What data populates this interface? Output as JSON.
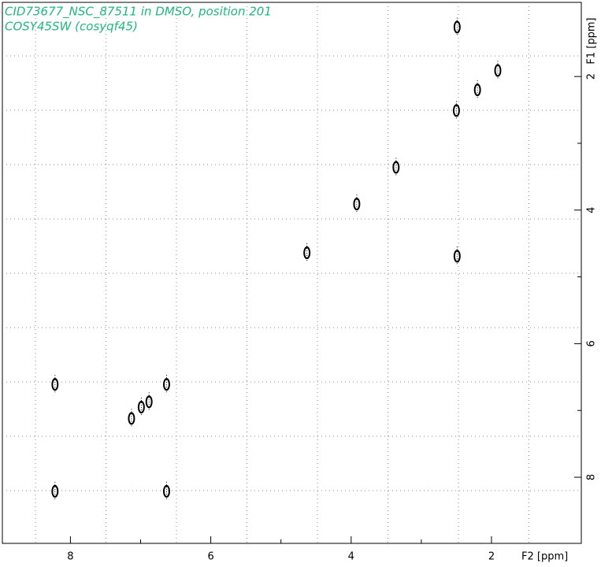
{
  "chart_data": {
    "type": "scatter",
    "title": "CID73677_NSC_87511 in DMSO, position 201",
    "subtitle": "COSY45SW (cosyqf45)",
    "x_label": "F2 [ppm]",
    "y_label": "F1 [ppm]",
    "x": [
      2.49,
      1.91,
      2.2,
      2.5,
      3.36,
      3.92,
      4.63,
      2.49,
      8.22,
      6.63,
      7.13,
      6.99,
      6.88,
      8.22,
      6.63
    ],
    "y": [
      1.26,
      1.91,
      2.2,
      2.51,
      3.36,
      3.91,
      4.64,
      4.69,
      6.61,
      6.61,
      7.12,
      6.95,
      6.87,
      8.21,
      8.21
    ],
    "color": "#000000",
    "title_color": "#1fb87a",
    "xlim": [
      8.97,
      0.72
    ],
    "ylim": [
      0.89,
      8.99
    ],
    "xticks": [
      8,
      6,
      4,
      2
    ],
    "yticks": [
      2,
      4,
      6,
      8
    ],
    "grid": true
  }
}
